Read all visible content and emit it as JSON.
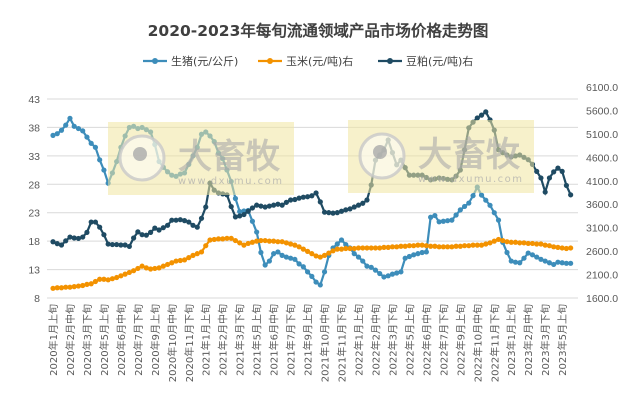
{
  "chart_data": {
    "type": "line",
    "title": "2020-2023年每旬流通领域产品市场价格走势图",
    "x_tick_labels": [
      "2020年1月上旬",
      "2020年2月中旬",
      "2020年3月下旬",
      "2020年5月上旬",
      "2020年6月中旬",
      "2020年7月下旬",
      "2020年9月上旬",
      "2020年10月中旬",
      "2020年11月下旬",
      "2021年1月上旬",
      "2021年2月中旬",
      "2021年3月下旬",
      "2021年5月上旬",
      "2021年6月中旬",
      "2021年7月下旬",
      "2021年9月上旬",
      "2021年10月中旬",
      "2021年11月下旬",
      "2022年1月上旬",
      "2022年2月中旬",
      "2022年3月下旬",
      "2022年5月上旬",
      "2022年6月中旬",
      "2022年7月下旬",
      "2022年9月上旬",
      "2022年10月中旬",
      "2022年11月下旬",
      "2023年1月上旬",
      "2023年2月中旬",
      "2023年3月下旬",
      "2023年5月上旬"
    ],
    "x_tick_every": 4,
    "y_left": {
      "min": 8,
      "max": 43,
      "step": 5,
      "tick_labels": [
        "8",
        "13",
        "18",
        "23",
        "28",
        "33",
        "38",
        "43"
      ]
    },
    "y_right": {
      "min": 1600,
      "max": 6100,
      "step": 500,
      "tick_labels": [
        "1600.0",
        "2100.0",
        "2600.0",
        "3100.0",
        "3600.0",
        "4100.0",
        "4600.0",
        "5100.0",
        "5600.0",
        "6100.0"
      ]
    },
    "grid": "horizontal",
    "legend": "top",
    "series": [
      {
        "name": "生猪(元/公斤)",
        "axis": "left",
        "color": "#3D8DBA",
        "values": [
          36.6,
          36.9,
          37.5,
          38.4,
          39.6,
          38.2,
          37.8,
          37.4,
          36.3,
          35.2,
          34.5,
          32.3,
          30.5,
          28.2,
          30,
          32,
          34.5,
          36.5,
          38,
          38.2,
          37.8,
          38,
          37.6,
          37.2,
          35,
          32,
          31,
          30.2,
          29.6,
          29.4,
          29.8,
          30,
          31.5,
          33,
          34.5,
          36.8,
          37.2,
          36.5,
          35.5,
          33.5,
          32.5,
          30.5,
          28.5,
          25.5,
          23.2,
          23.3,
          23.4,
          21.5,
          19.6,
          16,
          13.8,
          14.5,
          15.8,
          16.1,
          15.5,
          15.2,
          15,
          14.8,
          14,
          13.5,
          12.6,
          11.8,
          10.8,
          10.3,
          12.6,
          15.5,
          16.8,
          17.5,
          18.2,
          17.4,
          16.8,
          15.8,
          15.2,
          14.5,
          13.6,
          13.4,
          12.9,
          12.3,
          11.7,
          11.9,
          12.2,
          12.4,
          12.6,
          15.0,
          15.3,
          15.6,
          15.8,
          16,
          16.1,
          22.2,
          22.5,
          21.4,
          21.5,
          21.6,
          21.7,
          22.6,
          23.5,
          24.1,
          24.7,
          26,
          27.5,
          26.1,
          25.2,
          24.3,
          23,
          21.7,
          17.8,
          16,
          14.5,
          14.3,
          14.2,
          15,
          15.9,
          15.6,
          15.2,
          14.8,
          14.5,
          14.2,
          13.9,
          14.3,
          14.2,
          14.1,
          14.1
        ]
      },
      {
        "name": "玉米(元/吨)右",
        "axis": "left",
        "color": "#F39200",
        "values": [
          9.7,
          9.8,
          9.8,
          9.9,
          9.9,
          10,
          10.1,
          10.2,
          10.4,
          10.5,
          10.9,
          11.3,
          11.3,
          11.2,
          11.4,
          11.6,
          11.9,
          12.2,
          12.5,
          12.8,
          13.2,
          13.6,
          13.3,
          13.1,
          13.2,
          13.3,
          13.6,
          13.9,
          14.2,
          14.5,
          14.6,
          14.7,
          15.1,
          15.5,
          15.8,
          16.1,
          17.2,
          18.2,
          18.3,
          18.4,
          18.4,
          18.5,
          18.5,
          18.1,
          17.7,
          17.3,
          17.6,
          17.8,
          18,
          18.1,
          18.1,
          18,
          18,
          17.9,
          17.9,
          17.7,
          17.5,
          17.3,
          17,
          16.6,
          16.2,
          15.8,
          15.4,
          15.2,
          15.5,
          15.9,
          16.3,
          16.6,
          16.6,
          16.7,
          16.7,
          16.7,
          16.8,
          16.8,
          16.8,
          16.8,
          16.8,
          16.8,
          16.9,
          16.9,
          17,
          17,
          17.1,
          17.1,
          17.2,
          17.2,
          17.3,
          17.3,
          17.2,
          17.1,
          17.1,
          17,
          17,
          17,
          17,
          17.1,
          17.1,
          17.2,
          17.2,
          17.3,
          17.3,
          17.3,
          17.5,
          17.7,
          18,
          18.3,
          18.1,
          17.9,
          17.8,
          17.8,
          17.7,
          17.7,
          17.6,
          17.6,
          17.5,
          17.5,
          17.3,
          17.2,
          17,
          16.9,
          16.8,
          16.7,
          16.8
        ]
      },
      {
        "name": "豆粕(元/吨)右",
        "axis": "right",
        "color": "#1F4B63",
        "values": [
          2800,
          2760,
          2730,
          2820,
          2900,
          2880,
          2870,
          2900,
          3000,
          3220,
          3220,
          3110,
          2950,
          2750,
          2740,
          2740,
          2730,
          2730,
          2700,
          2880,
          3010,
          2950,
          2940,
          3000,
          3090,
          3050,
          3100,
          3150,
          3260,
          3260,
          3270,
          3250,
          3220,
          3150,
          3110,
          3300,
          3540,
          4050,
          3900,
          3840,
          3820,
          3800,
          3550,
          3330,
          3350,
          3380,
          3450,
          3520,
          3580,
          3560,
          3540,
          3560,
          3580,
          3600,
          3580,
          3640,
          3690,
          3700,
          3730,
          3750,
          3760,
          3780,
          3840,
          3650,
          3430,
          3420,
          3410,
          3420,
          3450,
          3480,
          3500,
          3540,
          3580,
          3620,
          3690,
          4010,
          4540,
          4650,
          4760,
          4970,
          4700,
          4440,
          4540,
          4380,
          4220,
          4220,
          4220,
          4220,
          4170,
          4120,
          4140,
          4160,
          4150,
          4130,
          4120,
          4200,
          4330,
          4760,
          5230,
          5350,
          5440,
          5500,
          5570,
          5400,
          5180,
          4760,
          4700,
          4650,
          4610,
          4630,
          4650,
          4600,
          4550,
          4450,
          4300,
          4160,
          3860,
          4160,
          4290,
          4370,
          4300,
          4000,
          3800
        ]
      }
    ]
  },
  "watermark": {
    "brand": "大畜牧",
    "url": "www.dxumu.com"
  }
}
